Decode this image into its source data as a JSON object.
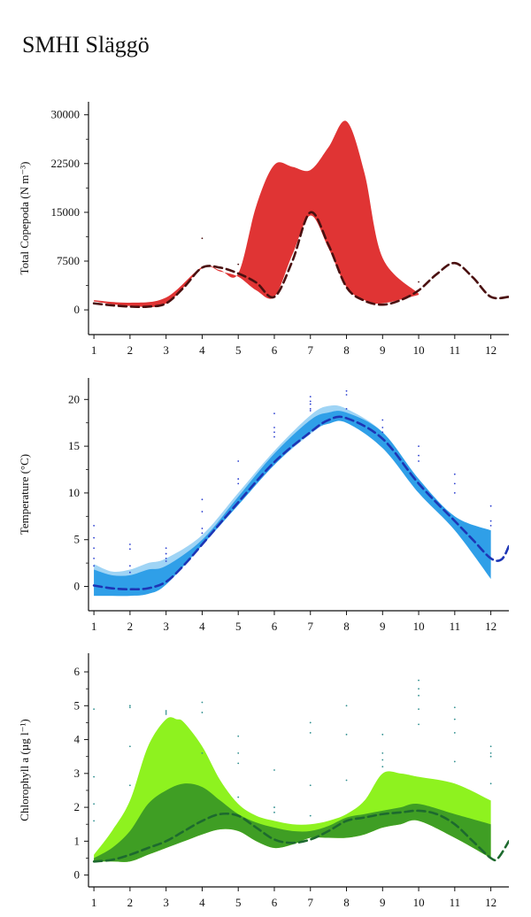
{
  "page": {
    "title": "SMHI Släggö"
  },
  "colors": {
    "copepoda_band": "#e03434",
    "copepoda_line": "#4a1010",
    "temp_band_dark": "#2f9fe8",
    "temp_band_light": "#9fd4f5",
    "temp_line": "#1d35b5",
    "temp_points": "#2b3fd0",
    "chl_band_light": "#8ef21f",
    "chl_band_dark": "#3f9e24",
    "chl_line": "#1d6a2e",
    "chl_points": "#2f8f8f"
  },
  "chart_data": [
    {
      "type": "area",
      "name": "copepoda",
      "ylabel": "Total Copepoda (N m⁻³)",
      "xticks": [
        "1",
        "2",
        "3",
        "4",
        "5",
        "6",
        "7",
        "8",
        "9",
        "10",
        "11",
        "12"
      ],
      "yticks": [
        "0",
        "7500",
        "15000",
        "22500",
        "30000"
      ],
      "xlim": [
        0.85,
        12.5
      ],
      "ylim": [
        -3800,
        32000
      ],
      "series": [
        {
          "role": "band",
          "x": [
            1,
            2,
            3,
            4,
            4.5,
            5,
            5.5,
            6,
            6.5,
            7,
            7.5,
            8,
            8.5,
            9,
            10
          ],
          "upper": [
            1500,
            1100,
            1900,
            6600,
            6100,
            5600,
            16000,
            22300,
            22000,
            21500,
            25000,
            29000,
            21000,
            8000,
            2500
          ],
          "lower": [
            1300,
            600,
            1000,
            6400,
            5900,
            5100,
            3000,
            2000,
            8500,
            14500,
            9500,
            3500,
            1500,
            1000,
            2300
          ]
        },
        {
          "role": "line",
          "x": [
            1,
            1.5,
            2,
            2.5,
            3,
            3.5,
            4,
            4.5,
            5,
            5.5,
            6,
            6.5,
            7,
            7.5,
            8,
            8.5,
            9,
            9.5,
            10,
            10.5,
            11,
            11.5,
            12,
            12.5
          ],
          "y": [
            1000,
            700,
            500,
            500,
            1000,
            3500,
            6500,
            6500,
            5600,
            4200,
            2000,
            7500,
            15000,
            10000,
            3500,
            1400,
            800,
            1500,
            3000,
            5500,
            7200,
            5000,
            2000,
            2000
          ]
        },
        {
          "role": "points",
          "x": [
            4,
            5,
            10
          ],
          "y": [
            11000,
            7000,
            4300
          ]
        }
      ]
    },
    {
      "type": "area",
      "name": "temperature",
      "ylabel": "Temperature (°C)",
      "xticks": [
        "1",
        "2",
        "3",
        "4",
        "5",
        "6",
        "7",
        "8",
        "9",
        "10",
        "11",
        "12"
      ],
      "yticks": [
        "0",
        "5",
        "10",
        "15",
        "20"
      ],
      "xlim": [
        0.85,
        12.5
      ],
      "ylim": [
        -2.6,
        22.3
      ],
      "series": [
        {
          "role": "band-light",
          "x": [
            1,
            1.5,
            2,
            2.5,
            3,
            4,
            5,
            6,
            7,
            7.5,
            8,
            9,
            10,
            11,
            12
          ],
          "upper": [
            2.4,
            1.6,
            1.8,
            2.5,
            3.0,
            5.5,
            10.0,
            14.5,
            18.3,
            19.3,
            19.0,
            16.5,
            11.5,
            7.5,
            6.0
          ],
          "lower": [
            -1.0,
            -1.0,
            -1.0,
            -0.8,
            0.2,
            4.5,
            8.7,
            13.0,
            16.3,
            17.5,
            17.8,
            15.5,
            10.5,
            6.3,
            2.0
          ]
        },
        {
          "role": "band-dark",
          "x": [
            1,
            1.5,
            2,
            2.5,
            3,
            4,
            5,
            6,
            7,
            7.5,
            8,
            9,
            10,
            11,
            12
          ],
          "upper": [
            1.8,
            1.2,
            1.2,
            1.8,
            2.2,
            5.0,
            9.6,
            14.2,
            17.8,
            18.6,
            18.6,
            16.5,
            11.5,
            7.5,
            6.0
          ],
          "lower": [
            -1.0,
            -1.0,
            -1.0,
            -0.8,
            0.2,
            4.4,
            8.7,
            13.0,
            16.5,
            17.4,
            17.5,
            14.8,
            10.0,
            6.0,
            0.8
          ]
        },
        {
          "role": "line",
          "x": [
            1,
            1.5,
            2,
            2.5,
            3,
            3.5,
            4,
            5,
            6,
            7,
            7.5,
            8,
            9,
            10,
            11,
            11.5,
            12,
            12.3,
            12.5
          ],
          "y": [
            0.1,
            -0.2,
            -0.3,
            -0.2,
            0.5,
            2.3,
            4.5,
            9.0,
            13.3,
            16.5,
            17.8,
            18.0,
            15.8,
            11.0,
            7.0,
            5.0,
            3.0,
            2.9,
            4.3
          ]
        },
        {
          "role": "points",
          "x": [
            1,
            1,
            1,
            1,
            1,
            2,
            2,
            2,
            2,
            3,
            3,
            3,
            3,
            4,
            4,
            4,
            4,
            5,
            5,
            5,
            6,
            6,
            6,
            6,
            7,
            7,
            7,
            7,
            7,
            8,
            8,
            8,
            9,
            9,
            9,
            10,
            10,
            10,
            11,
            11,
            11,
            12,
            12,
            12
          ],
          "y": [
            6.5,
            5.2,
            4.1,
            3.0,
            2.2,
            4.5,
            4.0,
            2.2,
            1.5,
            4.1,
            3.5,
            3.0,
            2.7,
            9.3,
            8.0,
            6.2,
            5.7,
            13.4,
            11.5,
            11.0,
            18.5,
            17.0,
            16.5,
            16.0,
            20.3,
            19.8,
            19.5,
            19.0,
            18.8,
            20.9,
            20.5,
            19.0,
            17.8,
            17.0,
            16.5,
            15.0,
            14.0,
            13.4,
            12.0,
            11.0,
            10.0,
            8.6,
            7.0,
            6.5
          ]
        }
      ]
    },
    {
      "type": "area",
      "name": "chlorophyll",
      "ylabel": "Chlorophyll a (µg l⁻¹)",
      "xticks": [
        "1",
        "2",
        "3",
        "4",
        "5",
        "6",
        "7",
        "8",
        "9",
        "10",
        "11",
        "12"
      ],
      "yticks": [
        "0",
        "1",
        "2",
        "3",
        "4",
        "5",
        "6"
      ],
      "xlim": [
        0.85,
        12.5
      ],
      "ylim": [
        -0.35,
        6.55
      ],
      "series": [
        {
          "role": "band-light",
          "x": [
            1,
            1.5,
            2,
            2.5,
            3,
            3.3,
            3.5,
            4,
            4.5,
            5,
            5.5,
            6,
            6.5,
            7,
            7.5,
            8,
            8.5,
            9,
            9.5,
            10,
            11,
            12
          ],
          "upper": [
            0.6,
            1.3,
            2.2,
            3.8,
            4.6,
            4.6,
            4.5,
            3.8,
            2.8,
            2.1,
            1.75,
            1.6,
            1.5,
            1.5,
            1.6,
            1.8,
            2.2,
            3.0,
            3.0,
            2.9,
            2.7,
            2.2
          ],
          "lower": [
            0.4,
            0.4,
            0.4,
            0.6,
            0.8,
            0.95,
            1.0,
            1.2,
            1.35,
            1.3,
            1.0,
            0.8,
            0.9,
            1.1,
            1.1,
            1.1,
            1.2,
            1.4,
            1.5,
            1.6,
            1.1,
            0.5
          ]
        },
        {
          "role": "band-dark",
          "x": [
            1,
            1.5,
            2,
            2.5,
            3,
            3.5,
            4,
            4.5,
            5,
            5.5,
            6,
            6.5,
            7,
            7.5,
            8,
            8.5,
            9,
            9.5,
            10,
            11,
            12
          ],
          "upper": [
            0.5,
            0.8,
            1.3,
            2.1,
            2.5,
            2.7,
            2.6,
            2.2,
            1.8,
            1.55,
            1.4,
            1.3,
            1.3,
            1.45,
            1.7,
            1.8,
            1.9,
            2.0,
            2.1,
            1.8,
            1.5
          ],
          "lower": [
            0.4,
            0.4,
            0.4,
            0.6,
            0.8,
            1.0,
            1.2,
            1.35,
            1.3,
            1.0,
            0.8,
            0.9,
            1.1,
            1.1,
            1.1,
            1.2,
            1.4,
            1.5,
            1.6,
            1.1,
            0.5
          ]
        },
        {
          "role": "line",
          "x": [
            1,
            1.5,
            2,
            2.5,
            3,
            3.5,
            4,
            4.5,
            5,
            5.5,
            6,
            6.5,
            7,
            7.5,
            8,
            8.5,
            9,
            9.5,
            10,
            10.5,
            11,
            11.5,
            12,
            12.2,
            12.5
          ],
          "y": [
            0.4,
            0.45,
            0.6,
            0.8,
            1.0,
            1.3,
            1.6,
            1.8,
            1.75,
            1.4,
            1.05,
            0.95,
            1.05,
            1.3,
            1.6,
            1.7,
            1.8,
            1.85,
            1.9,
            1.8,
            1.5,
            1.0,
            0.5,
            0.5,
            1.0
          ]
        },
        {
          "role": "points",
          "x": [
            1,
            1,
            1,
            1,
            2,
            2,
            2,
            2,
            3,
            3,
            3,
            4,
            4,
            4,
            5,
            5,
            5,
            5,
            6,
            6,
            6,
            7,
            7,
            7,
            7,
            8,
            8,
            8,
            9,
            9,
            9,
            9,
            10,
            10,
            10,
            10,
            10,
            11,
            11,
            11,
            11,
            12,
            12,
            12,
            12
          ],
          "y": [
            4.9,
            2.9,
            2.1,
            1.6,
            5.0,
            4.95,
            3.8,
            2.65,
            4.85,
            4.8,
            4.75,
            5.1,
            4.8,
            3.6,
            4.1,
            3.6,
            3.3,
            2.3,
            3.1,
            2.0,
            1.85,
            4.5,
            4.2,
            2.65,
            1.75,
            5.0,
            4.15,
            2.8,
            4.15,
            3.6,
            3.4,
            3.2,
            5.75,
            5.5,
            5.3,
            4.9,
            4.45,
            4.95,
            4.6,
            4.2,
            3.35,
            3.8,
            3.6,
            3.5,
            2.7
          ]
        }
      ]
    }
  ]
}
